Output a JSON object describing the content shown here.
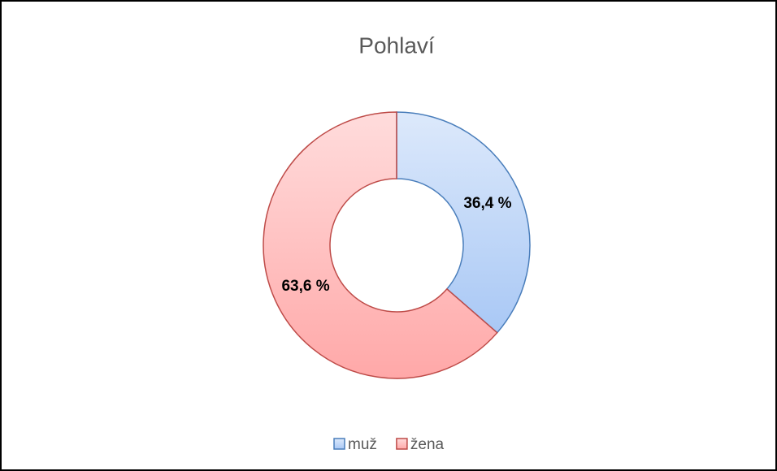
{
  "chart_data": {
    "type": "donut",
    "title": "Pohlaví",
    "categories": [
      "muž",
      "žena"
    ],
    "values": [
      36.4,
      63.6
    ],
    "value_labels": [
      "36,4 %",
      "63,6 %"
    ],
    "colors": [
      "#a9c8f5",
      "#ffa8a8"
    ],
    "edge_colors": [
      "#4a7ebb",
      "#be4b48"
    ],
    "legend": "bottom"
  }
}
